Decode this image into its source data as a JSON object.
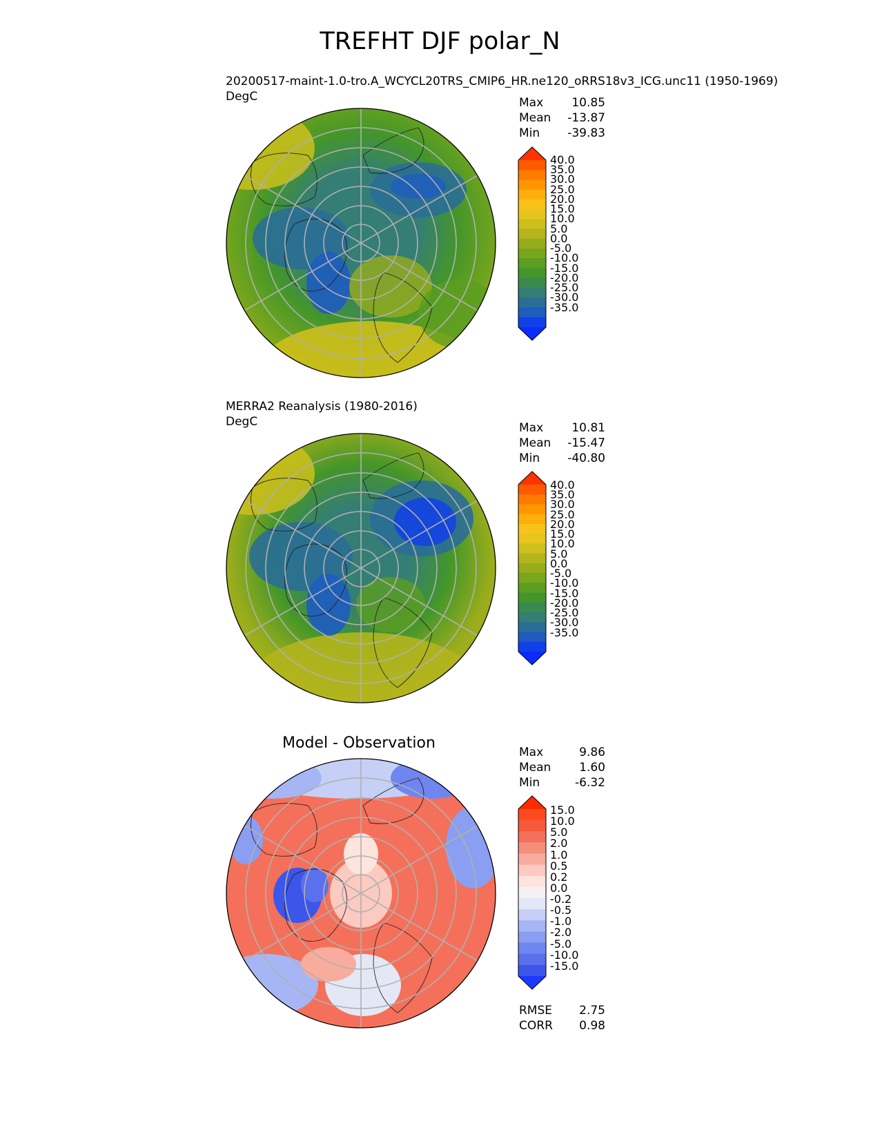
{
  "title": "TREFHT DJF polar_N",
  "panels": [
    {
      "id": "test",
      "label": "20200517-maint-1.0-tro.A_WCYCL20TRS_CMIP6_HR.ne120_oRRS18v3_ICG.unc11 (1950-1969)",
      "units": "DegC",
      "stats": [
        {
          "label": "Max",
          "value": "10.85"
        },
        {
          "label": "Mean",
          "value": "-13.87"
        },
        {
          "label": "Min",
          "value": "-39.83"
        }
      ],
      "colorbar_ticks": [
        "40.0",
        "35.0",
        "30.0",
        "25.0",
        "20.0",
        "15.0",
        "10.0",
        "5.0",
        "0.0",
        "-5.0",
        "-10.0",
        "-15.0",
        "-20.0",
        "-25.0",
        "-30.0",
        "-35.0"
      ]
    },
    {
      "id": "ref",
      "label": "MERRA2 Reanalysis (1980-2016)",
      "units": "DegC",
      "stats": [
        {
          "label": "Max",
          "value": "10.81"
        },
        {
          "label": "Mean",
          "value": "-15.47"
        },
        {
          "label": "Min",
          "value": "-40.80"
        }
      ],
      "colorbar_ticks": [
        "40.0",
        "35.0",
        "30.0",
        "25.0",
        "20.0",
        "15.0",
        "10.0",
        "5.0",
        "0.0",
        "-5.0",
        "-10.0",
        "-15.0",
        "-20.0",
        "-25.0",
        "-30.0",
        "-35.0"
      ]
    },
    {
      "id": "diff",
      "label": "Model - Observation",
      "stats": [
        {
          "label": "Max",
          "value": "9.86"
        },
        {
          "label": "Mean",
          "value": "1.60"
        },
        {
          "label": "Min",
          "value": "-6.32"
        }
      ],
      "colorbar_ticks": [
        "15.0",
        "10.0",
        "5.0",
        "2.0",
        "1.0",
        "0.5",
        "0.2",
        "0.0",
        "-0.2",
        "-0.5",
        "-1.0",
        "-2.0",
        "-5.0",
        "-10.0",
        "-15.0"
      ],
      "metrics": [
        {
          "label": "RMSE",
          "value": "2.75"
        },
        {
          "label": "CORR",
          "value": "0.98"
        }
      ]
    }
  ],
  "colors": {
    "temp_scale": [
      "#ff3300",
      "#ff5a00",
      "#ff7a00",
      "#ff9600",
      "#ffae0c",
      "#f7c21a",
      "#e8c41e",
      "#cdbf1c",
      "#b3b51d",
      "#97ac1c",
      "#78a61c",
      "#5b9e21",
      "#44962a",
      "#3a8a4f",
      "#347e75",
      "#2a6e96",
      "#1e5cc0",
      "#1040e8",
      "#0a2cff"
    ],
    "diff_scale": [
      "#ff2a00",
      "#ff4a20",
      "#f7593c",
      "#f5705a",
      "#f68e7c",
      "#f8ac9e",
      "#fbcac0",
      "#fde4dc",
      "#f4f0f4",
      "#e4e8f6",
      "#c6d0f6",
      "#a6b6f4",
      "#8a9ef2",
      "#6f86f0",
      "#5a70ec",
      "#3c56ea",
      "#1a3aff"
    ]
  }
}
